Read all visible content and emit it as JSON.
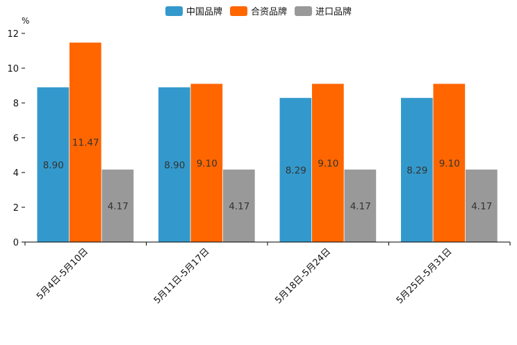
{
  "chart_data": {
    "type": "bar",
    "title": "",
    "ylabel": "%",
    "xlabel": "",
    "ylim": [
      0,
      12
    ],
    "yticks": [
      0,
      2,
      4,
      6,
      8,
      10,
      12
    ],
    "grid": false,
    "legend_position": "top-center",
    "categories": [
      "5月4日-5月10日",
      "5月11日-5月17日",
      "5月18日-5月24日",
      "5月25日-5月31日"
    ],
    "series": [
      {
        "name": "中国品牌",
        "color": "#3399cc",
        "values": [
          8.9,
          8.9,
          8.29,
          8.29
        ],
        "labels": [
          "8.90",
          "8.90",
          "8.29",
          "8.29"
        ]
      },
      {
        "name": "合资品牌",
        "color": "#ff6600",
        "values": [
          11.47,
          9.1,
          9.1,
          9.1
        ],
        "labels": [
          "11.47",
          "9.10",
          "9.10",
          "9.10"
        ]
      },
      {
        "name": "进口品牌",
        "color": "#999999",
        "values": [
          4.17,
          4.17,
          4.17,
          4.17
        ],
        "labels": [
          "4.17",
          "4.17",
          "4.17",
          "4.17"
        ]
      }
    ]
  }
}
